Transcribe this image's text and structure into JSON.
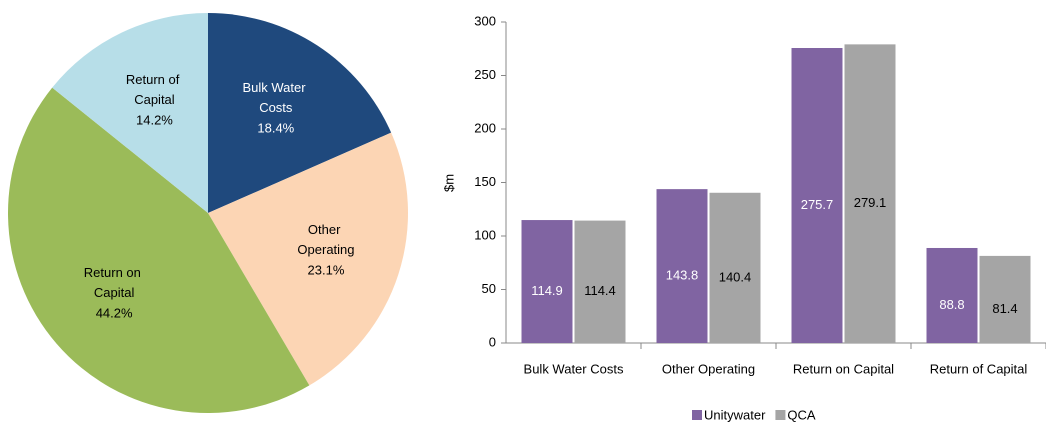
{
  "chart_data": [
    {
      "type": "pie",
      "categories": [
        "Bulk Water Costs",
        "Other Operating",
        "Return on Capital",
        "Return of Capital"
      ],
      "values": [
        18.4,
        23.1,
        44.2,
        14.2
      ],
      "value_labels": [
        "18.4%",
        "23.1%",
        "44.2%",
        "14.2%"
      ],
      "colors": [
        "#1f497d",
        "#fcd5b4",
        "#9bbb59",
        "#b7dee8"
      ],
      "label_colors": [
        "#ffffff",
        "#000000",
        "#000000",
        "#000000"
      ]
    },
    {
      "type": "bar",
      "y_label": "$m",
      "categories": [
        "Bulk Water Costs",
        "Other Operating",
        "Return on Capital",
        "Return of Capital"
      ],
      "series": [
        {
          "name": "Unitywater",
          "color": "#8064a2",
          "values": [
            114.9,
            143.8,
            275.7,
            88.8
          ]
        },
        {
          "name": "QCA",
          "color": "#a5a5a5",
          "values": [
            114.4,
            140.4,
            279.1,
            81.4
          ]
        }
      ],
      "ylim": [
        0,
        300
      ],
      "yticks": [
        0,
        50,
        100,
        150,
        200,
        250,
        300
      ],
      "legend": "bottom"
    }
  ]
}
